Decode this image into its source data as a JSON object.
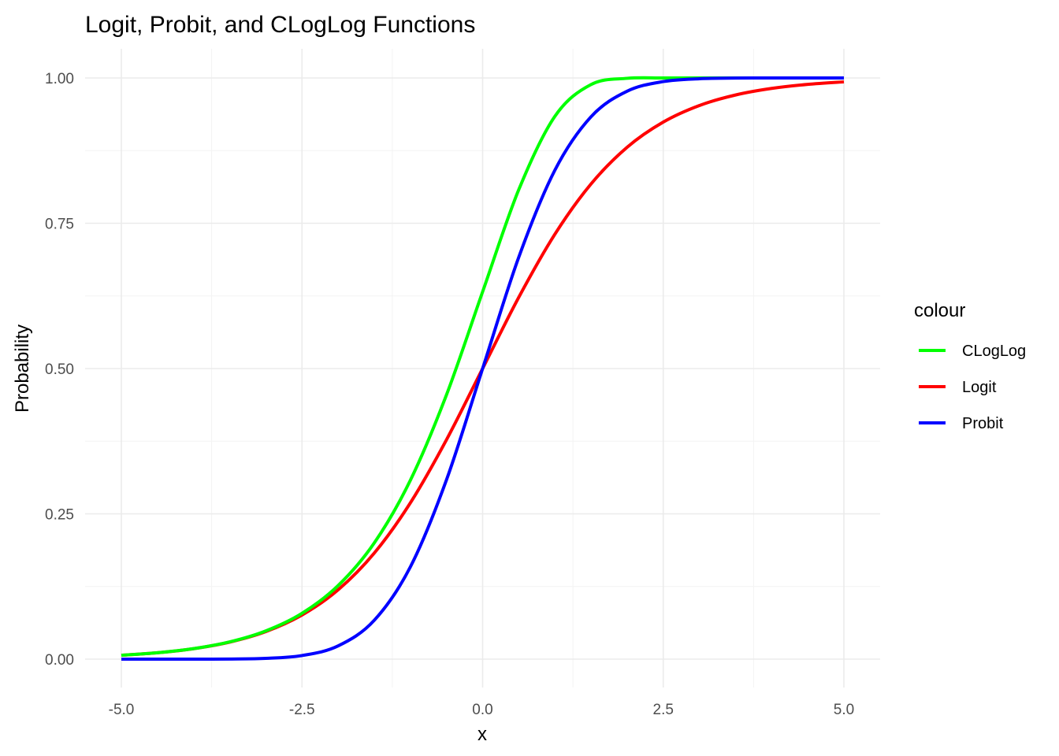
{
  "chart_data": {
    "type": "line",
    "title": "Logit, Probit, and CLogLog Functions",
    "xlabel": "x",
    "ylabel": "Probability",
    "xlim": [
      -5,
      5
    ],
    "ylim": [
      0,
      1
    ],
    "x_ticks": [
      -5,
      -2.5,
      0,
      2.5,
      5
    ],
    "x_tick_labels": [
      "-5.0",
      "-2.5",
      "0.0",
      "2.5",
      "5.0"
    ],
    "y_ticks": [
      0,
      0.25,
      0.5,
      0.75,
      1
    ],
    "y_tick_labels": [
      "0.00",
      "0.25",
      "0.50",
      "0.75",
      "1.00"
    ],
    "grid": true,
    "legend": {
      "title": "colour",
      "position": "right",
      "entries": [
        {
          "label": "CLogLog",
          "color": "#00ff00"
        },
        {
          "label": "Logit",
          "color": "#ff0000"
        },
        {
          "label": "Probit",
          "color": "#0000ff"
        }
      ]
    },
    "x": [
      -5.0,
      -4.5,
      -4.0,
      -3.5,
      -3.0,
      -2.5,
      -2.0,
      -1.5,
      -1.0,
      -0.5,
      0.0,
      0.5,
      1.0,
      1.5,
      2.0,
      2.5,
      3.0,
      3.5,
      4.0,
      4.5,
      5.0
    ],
    "series": [
      {
        "name": "CLogLog",
        "color": "#00ff00",
        "values": [
          0.0067,
          0.011,
          0.0181,
          0.0297,
          0.0486,
          0.0788,
          0.1266,
          0.1999,
          0.3078,
          0.4548,
          0.6321,
          0.8077,
          0.934,
          0.9887,
          0.9994,
          1.0,
          1.0,
          1.0,
          1.0,
          1.0,
          1.0
        ]
      },
      {
        "name": "Logit",
        "color": "#ff0000",
        "values": [
          0.0067,
          0.011,
          0.018,
          0.0293,
          0.0474,
          0.0759,
          0.1192,
          0.1824,
          0.2689,
          0.3775,
          0.5,
          0.6225,
          0.7311,
          0.8176,
          0.8808,
          0.9241,
          0.9526,
          0.9707,
          0.982,
          0.989,
          0.9933
        ]
      },
      {
        "name": "Probit",
        "color": "#0000ff",
        "values": [
          0.0,
          0.0,
          0.0,
          0.0002,
          0.0013,
          0.0062,
          0.0228,
          0.0668,
          0.1587,
          0.3085,
          0.5,
          0.6915,
          0.8413,
          0.9332,
          0.9772,
          0.9938,
          0.9987,
          0.9998,
          1.0,
          1.0,
          1.0
        ]
      }
    ]
  }
}
